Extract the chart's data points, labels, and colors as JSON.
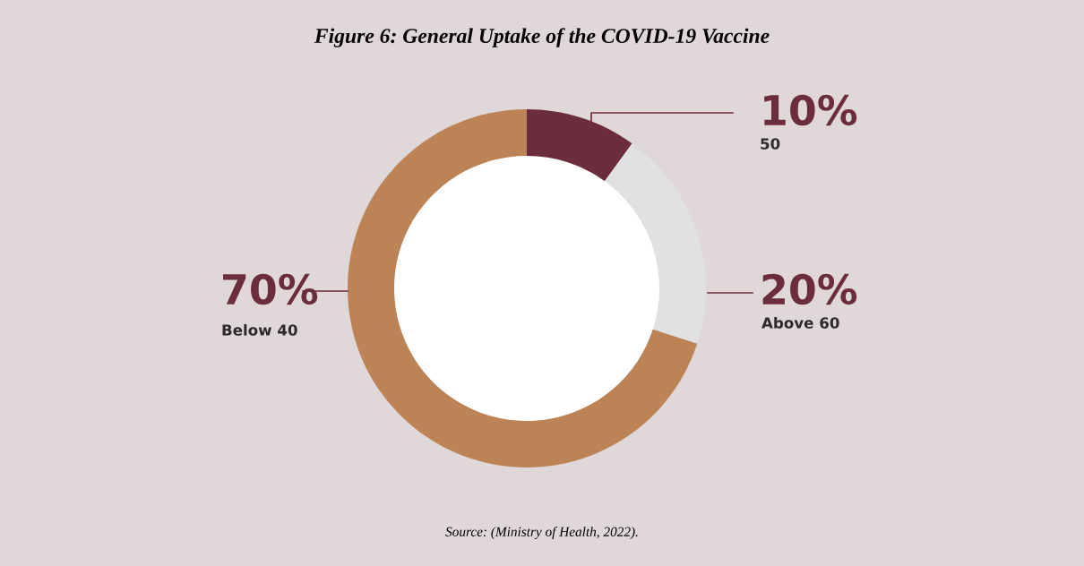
{
  "chart_data": {
    "type": "donut",
    "title": "Figure 6: General Uptake of the COVID-19 Vaccine",
    "categories": [
      "50",
      "Above 60",
      "Below 40"
    ],
    "values": [
      10,
      20,
      70
    ],
    "value_labels": [
      "10%",
      "20%",
      "70%"
    ],
    "colors": [
      "#6b2d3b",
      "#e1e1e3",
      "#bc8357"
    ],
    "legend": false,
    "annotations": [
      "Source: (Ministry of Health, 2022)."
    ]
  }
}
